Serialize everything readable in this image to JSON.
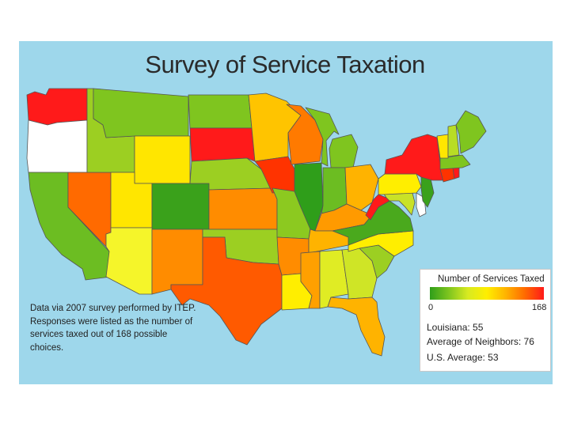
{
  "title": "Survey of Service Taxation",
  "note": "Data via 2007 survey performed by ITEP.  Responses were listed as the number of services taxed out of 168 possible choices.",
  "legend": {
    "title": "Number of Services Taxed",
    "min_label": "0",
    "max_label": "168",
    "color_low": "#2f9e1a",
    "color_mid": "#ffee00",
    "color_high": "#ff1a1a"
  },
  "stats": {
    "louisiana": "Louisiana: 55",
    "neighbors": "Average of Neighbors: 76",
    "us": "U.S. Average: 53"
  },
  "colors": {
    "water": "#9ed7eb",
    "no_data": "#ffffff",
    "state_outline": "#555555"
  },
  "states": [
    {
      "id": "WA",
      "color": "#ff1a1a"
    },
    {
      "id": "OR",
      "color": "#ffffff"
    },
    {
      "id": "CA",
      "color": "#6cbd22"
    },
    {
      "id": "NV",
      "color": "#ff6a00"
    },
    {
      "id": "ID",
      "color": "#9ccf22"
    },
    {
      "id": "MT",
      "color": "#7fc51f"
    },
    {
      "id": "WY",
      "color": "#ffe600"
    },
    {
      "id": "UT",
      "color": "#ffe600"
    },
    {
      "id": "CO",
      "color": "#3aa11b"
    },
    {
      "id": "AZ",
      "color": "#f5f52a"
    },
    {
      "id": "NM",
      "color": "#ff8c00"
    },
    {
      "id": "ND",
      "color": "#7fc51f"
    },
    {
      "id": "SD",
      "color": "#ff1a1a"
    },
    {
      "id": "NE",
      "color": "#9ccf22"
    },
    {
      "id": "KS",
      "color": "#ff8c00"
    },
    {
      "id": "OK",
      "color": "#9ccf22"
    },
    {
      "id": "TX",
      "color": "#ff5a00"
    },
    {
      "id": "MN",
      "color": "#ffc400"
    },
    {
      "id": "IA",
      "color": "#ff3300"
    },
    {
      "id": "MO",
      "color": "#8cc920"
    },
    {
      "id": "AR",
      "color": "#ff8c00"
    },
    {
      "id": "LA",
      "color": "#ffee00"
    },
    {
      "id": "WI",
      "color": "#ff7a00"
    },
    {
      "id": "IL",
      "color": "#2f9e1a"
    },
    {
      "id": "MI",
      "color": "#7fc51f"
    },
    {
      "id": "IN",
      "color": "#6cbd22"
    },
    {
      "id": "OH",
      "color": "#ffb300"
    },
    {
      "id": "KY",
      "color": "#ff9a00"
    },
    {
      "id": "TN",
      "color": "#ffb300"
    },
    {
      "id": "MS",
      "color": "#ffa000"
    },
    {
      "id": "AL",
      "color": "#e0ec24"
    },
    {
      "id": "GA",
      "color": "#cfe526"
    },
    {
      "id": "FL",
      "color": "#ffb300"
    },
    {
      "id": "SC",
      "color": "#9ccf22"
    },
    {
      "id": "NC",
      "color": "#ffee00"
    },
    {
      "id": "VA",
      "color": "#4aa91d"
    },
    {
      "id": "WV",
      "color": "#ff1a1a"
    },
    {
      "id": "MD",
      "color": "#c9e227"
    },
    {
      "id": "DE",
      "color": "#ffffff"
    },
    {
      "id": "PA",
      "color": "#ffee00"
    },
    {
      "id": "NJ",
      "color": "#3aa11b"
    },
    {
      "id": "NY",
      "color": "#ff1a1a"
    },
    {
      "id": "CT",
      "color": "#ff3300"
    },
    {
      "id": "RI",
      "color": "#ff1a1a"
    },
    {
      "id": "MA",
      "color": "#7fc51f"
    },
    {
      "id": "VT",
      "color": "#ffe600"
    },
    {
      "id": "NH",
      "color": "#b8dd25"
    },
    {
      "id": "ME",
      "color": "#7fc51f"
    }
  ]
}
